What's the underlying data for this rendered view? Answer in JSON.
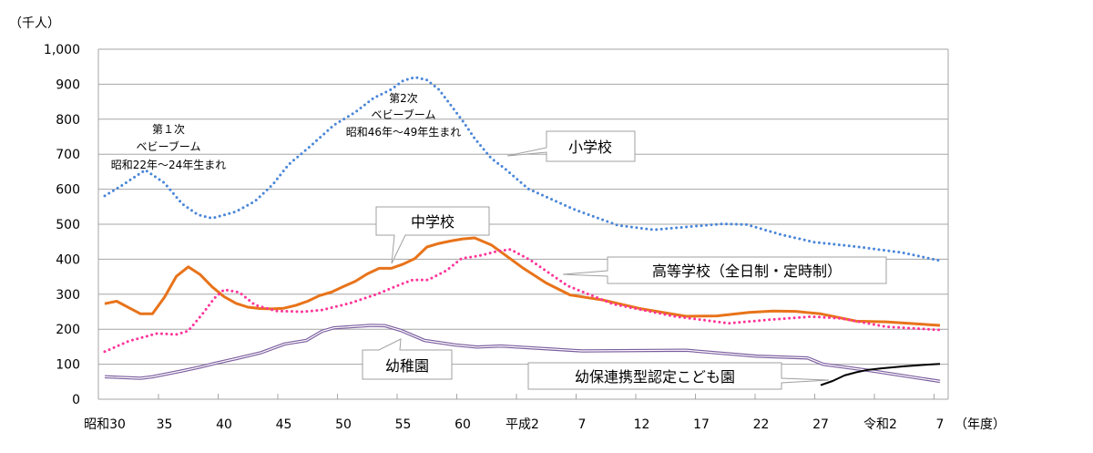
{
  "chart_data": {
    "type": "line",
    "ylabel": "（千人）",
    "xlabel": "（年度）",
    "ylim": [
      0,
      1000
    ],
    "y_ticks": [
      0,
      100,
      200,
      300,
      400,
      500,
      600,
      700,
      800,
      900,
      1000
    ],
    "y_tick_labels": [
      "0",
      "100",
      "200",
      "300",
      "400",
      "500",
      "600",
      "700",
      "800",
      "900",
      "1,000"
    ],
    "xlim": [
      1955,
      2025
    ],
    "x_ticks": [
      1955,
      1960,
      1965,
      1970,
      1975,
      1980,
      1985,
      1990,
      1995,
      2000,
      2005,
      2010,
      2015,
      2020,
      2025
    ],
    "x_tick_labels": [
      "昭和30",
      "35",
      "40",
      "45",
      "50",
      "55",
      "60",
      "平成2",
      "7",
      "12",
      "17",
      "22",
      "27",
      "令和2",
      "7"
    ],
    "grid": "horizontal",
    "series": [
      {
        "name": "小学校",
        "color": "#4a86d8",
        "style": "dotted",
        "x": [
          1955,
          1956.4,
          1958.4,
          1960,
          1961.5,
          1962.8,
          1964,
          1966,
          1967.6,
          1969.1,
          1970.4,
          1972.2,
          1974.2,
          1976,
          1977.5,
          1979,
          1980,
          1981,
          1982,
          1983,
          1984,
          1985,
          1986,
          1987.4,
          1988.5,
          1990.5,
          1994.5,
          1998,
          2001,
          2004,
          2006.8,
          2008.8,
          2011.6,
          2014.4,
          2018,
          2021.8,
          2025
        ],
        "values": [
          581,
          610,
          655,
          618,
          558,
          527,
          517,
          536,
          566,
          614,
          670,
          722,
          783,
          820,
          860,
          885,
          910,
          920,
          912,
          885,
          840,
          795,
          745,
          688,
          660,
          601,
          540,
          497,
          484,
          493,
          501,
          499,
          471,
          449,
          436,
          419,
          396
        ]
      },
      {
        "name": "中学校",
        "color": "#e8731a",
        "style": "solid",
        "x": [
          1955,
          1956,
          1957,
          1958,
          1959,
          1960,
          1961,
          1962,
          1963,
          1964,
          1965,
          1966,
          1967,
          1968,
          1969,
          1970,
          1971,
          1972,
          1973,
          1974,
          1975,
          1976,
          1977,
          1978,
          1979,
          1980,
          1981,
          1982,
          1983,
          1984,
          1985,
          1986,
          1987.4,
          1990,
          1992,
          1994,
          1996.8,
          2000,
          2003.7,
          2006.3,
          2009,
          2011,
          2012.9,
          2015,
          2018,
          2020.5,
          2025
        ],
        "values": [
          273,
          280,
          262,
          244,
          244,
          291,
          351,
          378,
          356,
          321,
          293,
          274,
          263,
          259,
          258,
          260,
          268,
          280,
          296,
          306,
          322,
          337,
          358,
          374,
          374,
          386,
          402,
          435,
          445,
          452,
          458,
          461,
          441,
          376,
          332,
          298,
          283,
          258,
          237,
          238,
          248,
          252,
          251,
          244,
          223,
          221,
          211
        ]
      },
      {
        "name": "高等学校（全日制・定時制）",
        "color": "#ff3399",
        "style": "dotted",
        "x": [
          1955,
          1957,
          1959.4,
          1961,
          1962,
          1963.2,
          1964.2,
          1965,
          1966.3,
          1967.6,
          1969.4,
          1971.6,
          1973.2,
          1975.5,
          1977.8,
          1979.8,
          1980.8,
          1982.1,
          1983.6,
          1984.9,
          1986.4,
          1987.9,
          1989,
          1990.7,
          1993.8,
          1997.6,
          2002.7,
          2007.3,
          2010.3,
          2014.2,
          2016.7,
          2020.5,
          2025
        ],
        "values": [
          136,
          166,
          188,
          185,
          195,
          244,
          289,
          313,
          305,
          269,
          252,
          250,
          255,
          274,
          300,
          328,
          341,
          341,
          367,
          402,
          410,
          423,
          428,
          397,
          324,
          272,
          237,
          217,
          226,
          236,
          231,
          207,
          198
        ]
      },
      {
        "name": "幼稚園",
        "color": "#7a5c9e",
        "style": "double",
        "x": [
          1955,
          1958,
          1959,
          1961.5,
          1963,
          1964.3,
          1966,
          1968.1,
          1970.1,
          1971.9,
          1973.2,
          1974.2,
          1977.3,
          1978.5,
          1979.8,
          1981.8,
          1984.4,
          1986.2,
          1988.2,
          1995,
          2003.7,
          2009.6,
          2013.9,
          2015.2,
          2019.3,
          2025
        ],
        "values": [
          64,
          60,
          64,
          81,
          92,
          103,
          116,
          133,
          158,
          168,
          194,
          204,
          211,
          210,
          197,
          168,
          155,
          149,
          152,
          138,
          140,
          123,
          118,
          100,
          81,
          51
        ]
      },
      {
        "name": "幼保連携型認定こども園",
        "color": "#000000",
        "style": "solid",
        "x": [
          2015,
          2016,
          2017,
          2018,
          2019,
          2020,
          2022,
          2024,
          2025
        ],
        "values": [
          40,
          52,
          68,
          77,
          84,
          88,
          94,
          99,
          101
        ]
      }
    ],
    "annotations": [
      {
        "lines": [
          "第１次",
          "ベビーブーム",
          "昭和22年～24年生まれ"
        ]
      },
      {
        "lines": [
          "第2次",
          "ベビーブーム",
          "昭和46年～49年生まれ"
        ]
      }
    ],
    "callouts": [
      "小学校",
      "中学校",
      "高等学校（全日制・定時制）",
      "幼稚園",
      "幼保連携型認定こども園"
    ]
  }
}
